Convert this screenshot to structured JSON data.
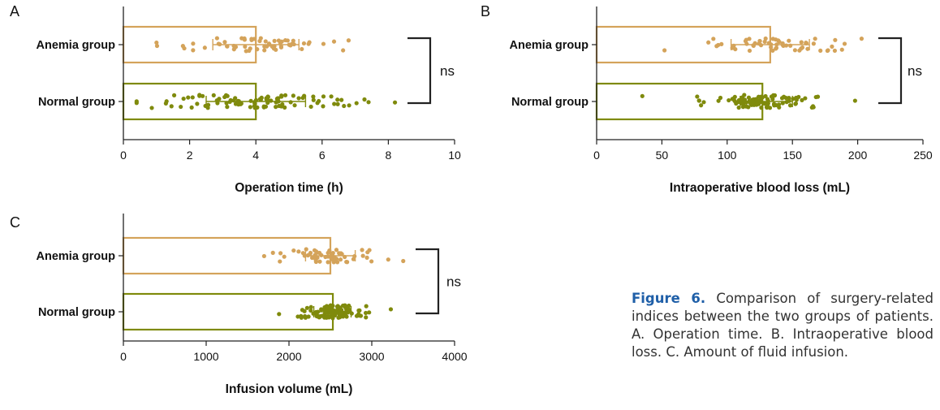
{
  "colors": {
    "anemia": "#d4a35a",
    "normal": "#7f8a0c",
    "axis": "#222222",
    "text": "#111111"
  },
  "caption": {
    "label": "Figure 6.",
    "text": "Comparison of surgery-related indices between the two groups of patients. A. Operation time. B. Intraoperative blood loss. C. Amount of fluid infusion."
  },
  "chart_data": [
    {
      "panel": "A",
      "type": "bar",
      "orientation": "horizontal",
      "style": "bar with scatter points and error bars",
      "categories": [
        "Anemia group",
        "Normal group"
      ],
      "xlabel": "Operation time (h)",
      "xlim": [
        0,
        10
      ],
      "xticks": [
        0,
        2,
        4,
        6,
        8,
        10
      ],
      "series": [
        {
          "category": "Anemia group",
          "mean": 4.0,
          "sd_low": 2.7,
          "sd_high": 5.3,
          "min": 1.0,
          "max": 6.8,
          "n": 60
        },
        {
          "category": "Normal group",
          "mean": 4.0,
          "sd_low": 2.5,
          "sd_high": 5.5,
          "min": 0.4,
          "max": 8.2,
          "n": 100
        }
      ],
      "annotation": "ns"
    },
    {
      "panel": "B",
      "type": "bar",
      "orientation": "horizontal",
      "style": "bar with scatter points and error bars",
      "categories": [
        "Anemia group",
        "Normal group"
      ],
      "xlabel": "Intraoperative blood loss (mL)",
      "xlim": [
        0,
        250
      ],
      "xticks": [
        0,
        50,
        100,
        150,
        200,
        250
      ],
      "series": [
        {
          "category": "Anemia group",
          "mean": 133,
          "sd_low": 103,
          "sd_high": 163,
          "min": 52,
          "max": 203,
          "n": 60
        },
        {
          "category": "Normal group",
          "mean": 127,
          "sd_low": 110,
          "sd_high": 150,
          "min": 35,
          "max": 198,
          "n": 100
        }
      ],
      "annotation": "ns"
    },
    {
      "panel": "C",
      "type": "bar",
      "orientation": "horizontal",
      "style": "bar with scatter points and error bars",
      "categories": [
        "Anemia group",
        "Normal group"
      ],
      "xlabel": "Infusion volume (mL)",
      "xlim": [
        0,
        4000
      ],
      "xticks": [
        0,
        1000,
        2000,
        3000,
        4000
      ],
      "series": [
        {
          "category": "Anemia group",
          "mean": 2500,
          "sd_low": 2200,
          "sd_high": 2800,
          "min": 1700,
          "max": 3380,
          "n": 60
        },
        {
          "category": "Normal group",
          "mean": 2530,
          "sd_low": 2300,
          "sd_high": 2750,
          "min": 1880,
          "max": 3230,
          "n": 100
        }
      ],
      "annotation": "ns"
    }
  ]
}
